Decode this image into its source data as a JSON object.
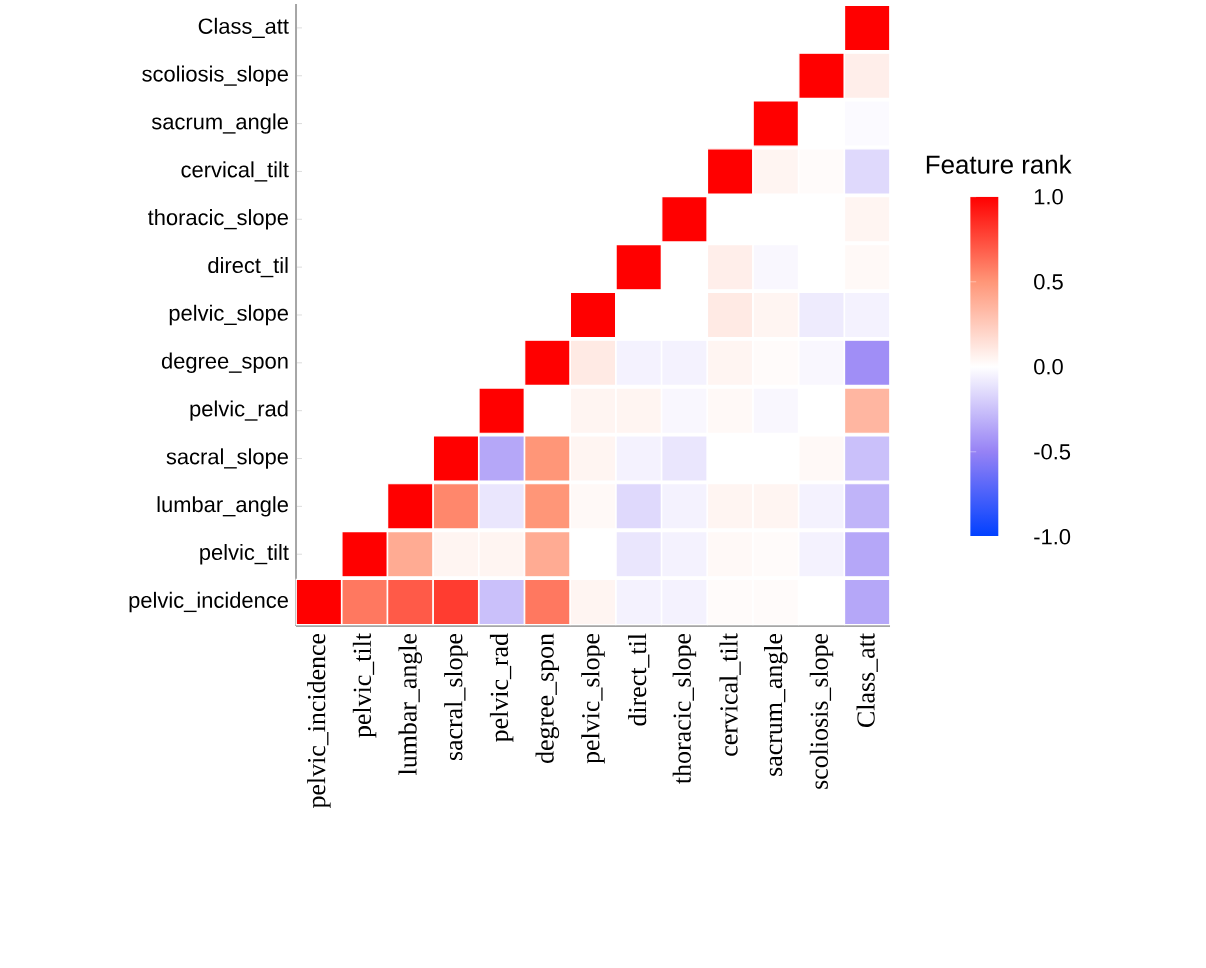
{
  "chart_data": {
    "type": "heatmap",
    "clabel": "Feature rank",
    "categories": [
      "pelvic_incidence",
      "pelvic_tilt",
      "lumbar_angle",
      "sacral_slope",
      "pelvic_rad",
      "degree_spon",
      "pelvic_slope",
      "direct_til",
      "thoracic_slope",
      "cervical_tilt",
      "sacrum_angle",
      "scoliosis_slope",
      "Class_att"
    ],
    "y_categories": [
      "Class_att",
      "scoliosis_slope",
      "sacrum_angle",
      "cervical_tilt",
      "thoracic_slope",
      "direct_til",
      "pelvic_slope",
      "degree_spon",
      "pelvic_rad",
      "sacral_slope",
      "lumbar_angle",
      "pelvic_tilt",
      "pelvic_incidence"
    ],
    "cells": [
      [
        null,
        null,
        null,
        null,
        null,
        null,
        null,
        null,
        null,
        null,
        null,
        null,
        1
      ],
      [
        null,
        null,
        null,
        null,
        null,
        null,
        null,
        null,
        null,
        null,
        null,
        1,
        0.08
      ],
      [
        null,
        null,
        null,
        null,
        null,
        null,
        null,
        null,
        null,
        null,
        1,
        0.0,
        -0.02
      ],
      [
        null,
        null,
        null,
        null,
        null,
        null,
        null,
        null,
        null,
        1,
        0.05,
        0.02,
        -0.15
      ],
      [
        null,
        null,
        null,
        null,
        null,
        null,
        null,
        null,
        1,
        0.0,
        0.0,
        0.0,
        0.05
      ],
      [
        null,
        null,
        null,
        null,
        null,
        null,
        null,
        1,
        0.0,
        0.08,
        -0.03,
        0.0,
        0.03
      ],
      [
        null,
        null,
        null,
        null,
        null,
        null,
        1,
        0.0,
        0.0,
        0.1,
        0.05,
        -0.08,
        -0.05
      ],
      [
        null,
        null,
        null,
        null,
        null,
        1,
        0.1,
        -0.05,
        -0.05,
        0.05,
        0.02,
        -0.03,
        -0.45
      ],
      [
        null,
        null,
        null,
        null,
        1,
        0.0,
        0.05,
        0.05,
        -0.03,
        0.03,
        -0.03,
        0.0,
        0.35
      ],
      [
        null,
        null,
        null,
        1,
        -0.35,
        0.5,
        0.05,
        -0.05,
        -0.1,
        0.0,
        0.0,
        0.03,
        -0.25
      ],
      [
        null,
        null,
        1,
        0.55,
        -0.1,
        0.5,
        0.03,
        -0.15,
        -0.05,
        0.05,
        0.05,
        -0.05,
        -0.3
      ],
      [
        null,
        1,
        0.4,
        0.05,
        0.05,
        0.4,
        0.0,
        -0.1,
        -0.05,
        0.03,
        0.02,
        -0.05,
        -0.35
      ],
      [
        1,
        0.6,
        0.7,
        0.8,
        -0.25,
        0.6,
        0.05,
        -0.05,
        -0.05,
        0.02,
        0.02,
        0.0,
        -0.35
      ]
    ],
    "clim": [
      -1,
      1
    ],
    "cticks": [
      {
        "value": -1,
        "label": "-1.0"
      },
      {
        "value": -0.5,
        "label": "-0.5"
      },
      {
        "value": 0,
        "label": "0.0"
      },
      {
        "value": 0.5,
        "label": "0.5"
      },
      {
        "value": 1,
        "label": "1.0"
      }
    ]
  }
}
